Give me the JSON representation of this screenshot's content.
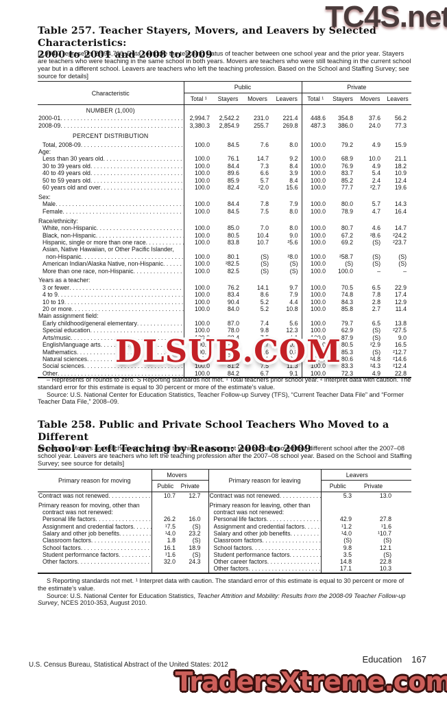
{
  "watermarks": {
    "top": "TC4S.net",
    "middle": "DLSUB.COM",
    "bottom": "TradersXtreme.com"
  },
  "table257": {
    "title_line1": "Table 257. Teacher Stayers, Movers, and Leavers by Selected Characteristics:",
    "title_line2": "2000 to 2001 and 2008 to 2009",
    "bracket_note": "[2,994.7 represents 2,994,700. Data compare the teaching status of teacher between one school year and the prior year. Stayers are teachers who were teaching in the same school in both years. Movers are teachers who were still teaching in the current school year but in a different school. Leavers are teachers who left the teaching profession. Based on the School and Staffing Survey; see source for details]",
    "col_header": "Characteristic",
    "groups": [
      "Public",
      "Private"
    ],
    "sub_headers": [
      "Total ¹",
      "Stayers",
      "Movers",
      "Leavers",
      "Total ¹",
      "Stayers",
      "Movers",
      "Leavers"
    ],
    "rows": [
      {
        "t": "section",
        "big": false,
        "label": "NUMBER (1,000)"
      },
      {
        "t": "data",
        "ind": 0,
        "label": "2000-01",
        "v": [
          "2,994.7",
          "2,542.2",
          "231.0",
          "221.4",
          "448.6",
          "354.8",
          "37.6",
          "56.2"
        ]
      },
      {
        "t": "data",
        "ind": 0,
        "label": "2008-09",
        "v": [
          "3,380.3",
          "2,854.9",
          "255.7",
          "269.8",
          "487.3",
          "386.0",
          "24.0",
          "77.3"
        ]
      },
      {
        "t": "section",
        "big": true,
        "label": "PERCENT DISTRIBUTION"
      },
      {
        "t": "data",
        "ind": 1,
        "label": "Total, 2008-09",
        "v": [
          "100.0",
          "84.5",
          "7.6",
          "8.0",
          "100.0",
          "79.2",
          "4.9",
          "15.9"
        ]
      },
      {
        "t": "group",
        "label": "Age:"
      },
      {
        "t": "data",
        "ind": 1,
        "label": "Less than 30 years old",
        "v": [
          "100.0",
          "76.1",
          "14.7",
          "9.2",
          "100.0",
          "68.9",
          "10.0",
          "21.1"
        ]
      },
      {
        "t": "data",
        "ind": 1,
        "label": "30 to 39 years old",
        "v": [
          "100.0",
          "84.4",
          "7.3",
          "8.4",
          "100.0",
          "76.9",
          "4.9",
          "18.2"
        ]
      },
      {
        "t": "data",
        "ind": 1,
        "label": "40 to 49 years old",
        "v": [
          "100.0",
          "89.6",
          "6.6",
          "3.9",
          "100.0",
          "83.7",
          "5.4",
          "10.9"
        ]
      },
      {
        "t": "data",
        "ind": 1,
        "label": "50 to 59 years old",
        "v": [
          "100.0",
          "85.9",
          "5.7",
          "8.4",
          "100.0",
          "85.2",
          "2.4",
          "12.4"
        ]
      },
      {
        "t": "data",
        "ind": 1,
        "label": "60 years old and over",
        "v": [
          "100.0",
          "82.4",
          "²2.0",
          "15.6",
          "100.0",
          "77.7",
          "²2.7",
          "19.6"
        ]
      },
      {
        "t": "gap"
      },
      {
        "t": "group",
        "label": "Sex:"
      },
      {
        "t": "data",
        "ind": 1,
        "label": "Male",
        "v": [
          "100.0",
          "84.4",
          "7.8",
          "7.9",
          "100.0",
          "80.0",
          "5.7",
          "14.3"
        ]
      },
      {
        "t": "data",
        "ind": 1,
        "label": "Female",
        "v": [
          "100.0",
          "84.5",
          "7.5",
          "8.0",
          "100.0",
          "78.9",
          "4.7",
          "16.4"
        ]
      },
      {
        "t": "gap"
      },
      {
        "t": "group",
        "label": "Race/ethnicity:"
      },
      {
        "t": "data",
        "ind": 1,
        "label": "White, non-Hispanic",
        "v": [
          "100.0",
          "85.0",
          "7.0",
          "8.0",
          "100.0",
          "80.7",
          "4.6",
          "14.7"
        ]
      },
      {
        "t": "data",
        "ind": 1,
        "label": "Black, non-Hispanic",
        "v": [
          "100.0",
          "80.5",
          "10.4",
          "9.0",
          "100.0",
          "67.2",
          "²8.6",
          "²24.2"
        ]
      },
      {
        "t": "data",
        "ind": 1,
        "label": "Hispanic, single or more than one race",
        "v": [
          "100.0",
          "83.8",
          "10.7",
          "²5.6",
          "100.0",
          "69.2",
          "(S)",
          "²23.7"
        ]
      },
      {
        "t": "wrap",
        "ind": 1,
        "label": "Asian, Native Hawaiian, or Other Pacific Islander,"
      },
      {
        "t": "data",
        "ind": 2,
        "label": "non-Hispanic",
        "v": [
          "100.0",
          "80.1",
          "(S)",
          "²8.0",
          "100.0",
          "²58.7",
          "(S)",
          "(S)"
        ]
      },
      {
        "t": "data",
        "ind": 1,
        "label": "American Indian/Alaska Native, non-Hispanic",
        "v": [
          "100.0",
          "²82.5",
          "(S)",
          "(S)",
          "100.0",
          "(S)",
          "(S)",
          "(S)"
        ]
      },
      {
        "t": "data",
        "ind": 1,
        "label": "More than one race, non-Hispanic",
        "v": [
          "100.0",
          "82.5",
          "(S)",
          "(S)",
          "100.0",
          "100.0",
          "–",
          "–"
        ]
      },
      {
        "t": "gap"
      },
      {
        "t": "group",
        "label": "Years as a teacher:"
      },
      {
        "t": "data",
        "ind": 1,
        "label": "3 or fewer",
        "v": [
          "100.0",
          "76.2",
          "14.1",
          "9.7",
          "100.0",
          "70.5",
          "6.5",
          "22.9"
        ]
      },
      {
        "t": "data",
        "ind": 1,
        "label": "4 to 9",
        "v": [
          "100.0",
          "83.4",
          "8.6",
          "7.9",
          "100.0",
          "74.8",
          "7.8",
          "17.4"
        ]
      },
      {
        "t": "data",
        "ind": 1,
        "label": "10 to 19",
        "v": [
          "100.0",
          "90.4",
          "5.2",
          "4.4",
          "100.0",
          "84.3",
          "2.8",
          "12.9"
        ]
      },
      {
        "t": "data",
        "ind": 1,
        "label": "20 or more",
        "v": [
          "100.0",
          "84.0",
          "5.2",
          "10.8",
          "100.0",
          "85.8",
          "2.7",
          "11.4"
        ]
      },
      {
        "t": "group",
        "label": "Main assignment field:"
      },
      {
        "t": "data",
        "ind": 1,
        "label": "Early childhood/general elementary",
        "v": [
          "100.0",
          "87.0",
          "7.4",
          "5.6",
          "100.0",
          "79.7",
          "6.5",
          "13.8"
        ]
      },
      {
        "t": "data",
        "ind": 1,
        "label": "Special education",
        "v": [
          "100.0",
          "78.0",
          "9.8",
          "12.3",
          "100.0",
          "62.9",
          "(S)",
          "²27.5"
        ]
      },
      {
        "t": "data",
        "ind": 1,
        "label": "Arts/music",
        "v": [
          "100.0",
          "88.4",
          "7.5",
          "4.1",
          "100.0",
          "87.9",
          "(S)",
          "9.0"
        ]
      },
      {
        "t": "data",
        "ind": 1,
        "label": "English/language arts",
        "v": [
          "100.0",
          "81.8",
          "7.7",
          "10.5",
          "100.0",
          "80.5",
          "²2.9",
          "16.5"
        ]
      },
      {
        "t": "data",
        "ind": 1,
        "label": "Mathematics",
        "v": [
          "100.0",
          "81.6",
          "7.6",
          "10.8",
          "100.0",
          "85.3",
          "(S)",
          "²12.7"
        ]
      },
      {
        "t": "data",
        "ind": 1,
        "label": "Natural sciences",
        "v": [
          "100.0",
          "79.9",
          "8.1",
          "12.0",
          "100.0",
          "80.6",
          "²4.8",
          "²14.6"
        ]
      },
      {
        "t": "data",
        "ind": 1,
        "label": "Social sciences",
        "v": [
          "100.0",
          "81.2",
          "7.5",
          "11.3",
          "100.0",
          "83.3",
          "²4.3",
          "²12.4"
        ]
      },
      {
        "t": "data",
        "ind": 1,
        "label": "Other",
        "v": [
          "100.0",
          "84.2",
          "6.7",
          "9.1",
          "100.0",
          "72.3",
          "4.9",
          "22.8"
        ]
      }
    ],
    "footnote": "– Represents or rounds to zero. S Reporting standards not met. ¹ Total teachers prior school year. ² Interpret data with caution. The standard error for this estimate is equal to 30 percent or more of the estimate’s value.",
    "source": "Source: U.S. National Center for Education Statistics, Teacher Follow-up Survey (TFS), “Current Teacher Data File” and “Former Teacher Data File,” 2008–09."
  },
  "table258": {
    "title_line1": "Table 258. Public and Private School Teachers Who Moved to a Different",
    "title_line2": "School or Left Teaching by Reason: 2008 to 2009",
    "bracket_note": "[In percent. Movers are teachers who were still teaching in the current year but had moved to a different school after the 2007–08 school year. Leavers are teachers who left the teaching profession after the 2007–08 school year. Based on the School and Staffing Survey; see source for details]",
    "left_header": "Primary reason for moving",
    "right_header": "Primary reason for leaving",
    "groups": [
      "Movers",
      "Leavers"
    ],
    "sub_headers": [
      "Public",
      "Private",
      "Public",
      "Private"
    ],
    "rows": [
      {
        "l": {
          "t": "data",
          "ind": 0,
          "label": "Contract was not renewed",
          "v": [
            "10.7",
            "12.7"
          ]
        },
        "r": {
          "t": "data",
          "ind": 0,
          "label": "Contract was not renewed",
          "v": [
            "5.3",
            "13.0"
          ]
        }
      },
      {
        "l": {
          "t": "gap"
        },
        "r": {
          "t": "gap"
        }
      },
      {
        "l": {
          "t": "plain",
          "ind": 0,
          "label": "Primary reason for moving, other than"
        },
        "r": {
          "t": "plain",
          "ind": 0,
          "label": "Primary reason for leaving, other than"
        }
      },
      {
        "l": {
          "t": "plain",
          "ind": 1,
          "label": "contract was not renewed:"
        },
        "r": {
          "t": "plain",
          "ind": 1,
          "label": "contract was not renewed:"
        }
      },
      {
        "l": {
          "t": "data",
          "ind": 1,
          "label": "Personal life factors",
          "v": [
            "26.2",
            "16.0"
          ]
        },
        "r": {
          "t": "data",
          "ind": 1,
          "label": "Personal life factors",
          "v": [
            "42.9",
            "27.8"
          ]
        }
      },
      {
        "l": {
          "t": "data",
          "ind": 1,
          "label": "Assignment and credential factors",
          "v": [
            "¹7.5",
            "(S)"
          ]
        },
        "r": {
          "t": "data",
          "ind": 1,
          "label": "Assignment and credential factors",
          "v": [
            "¹1.2",
            "¹1.6"
          ]
        }
      },
      {
        "l": {
          "t": "data",
          "ind": 1,
          "label": "Salary and other job benefits",
          "v": [
            "¹4.0",
            "23.2"
          ]
        },
        "r": {
          "t": "data",
          "ind": 1,
          "label": "Salary and other job benefits",
          "v": [
            "¹4.0",
            "¹10.7"
          ]
        }
      },
      {
        "l": {
          "t": "data",
          "ind": 1,
          "label": "Classroom factors",
          "v": [
            "1.8",
            "(S)"
          ]
        },
        "r": {
          "t": "data",
          "ind": 1,
          "label": "Classroom factors",
          "v": [
            "(S)",
            "(S)"
          ]
        }
      },
      {
        "l": {
          "t": "data",
          "ind": 1,
          "label": "School factors",
          "v": [
            "16.1",
            "18.9"
          ]
        },
        "r": {
          "t": "data",
          "ind": 1,
          "label": "School factors",
          "v": [
            "9.8",
            "12.1"
          ]
        }
      },
      {
        "l": {
          "t": "data",
          "ind": 1,
          "label": "Student performance factors",
          "v": [
            "¹1.6",
            "(S)"
          ]
        },
        "r": {
          "t": "data",
          "ind": 1,
          "label": "Student performance factors",
          "v": [
            "3.5",
            "(S)"
          ]
        }
      },
      {
        "l": {
          "t": "data",
          "ind": 1,
          "label": "Other factors",
          "v": [
            "32.0",
            "24.3"
          ]
        },
        "r": {
          "t": "data",
          "ind": 1,
          "label": "Other career factors",
          "v": [
            "14.8",
            "22.8"
          ]
        }
      },
      {
        "l": {
          "t": "plain",
          "ind": 0,
          "label": ""
        },
        "r": {
          "t": "data",
          "ind": 1,
          "label": "Other factors",
          "v": [
            "17.1",
            "10.3"
          ]
        }
      }
    ],
    "footnote": "S Reporting standards not met. ¹ Interpret data with caution. The standard error of this estimate is equal to 30 percent or more of the estimate’s value.",
    "source_prefix": "Source: U.S. National Center for Education Statistics, ",
    "source_italic": "Teacher Attrition and Mobility: Results from the 2008-09 Teacher Follow-up Survey",
    "source_suffix": ", NCES 2010-353, August 2010."
  },
  "footer": {
    "credit": "U.S. Census Bureau, Statistical Abstract of the United States: 2012",
    "section": "Education",
    "page": "167"
  }
}
